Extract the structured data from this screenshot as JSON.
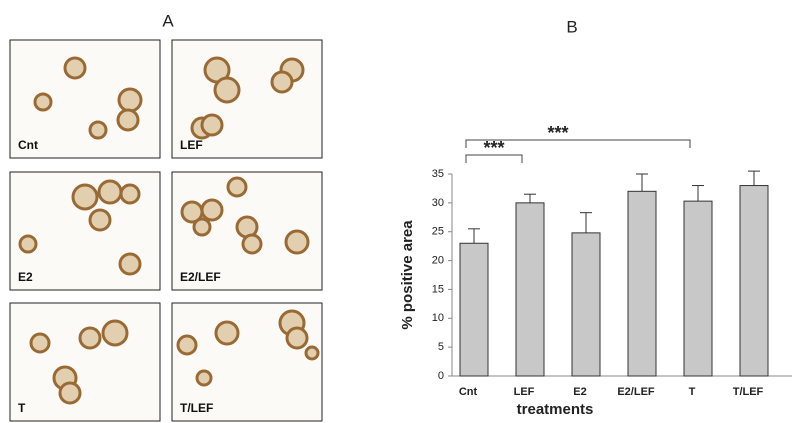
{
  "panel_a": {
    "label": "A",
    "images": [
      {
        "label": "Cnt"
      },
      {
        "label": "LEF"
      },
      {
        "label": "E2"
      },
      {
        "label": "E2/LEF"
      },
      {
        "label": "T"
      },
      {
        "label": "T/LEF"
      }
    ]
  },
  "chart_data": {
    "type": "bar",
    "label": "B",
    "x_label": "treatments",
    "y_label": "% positive area",
    "categories": [
      "Cnt",
      "LEF",
      "E2",
      "E2/LEF",
      "T",
      "T/LEF"
    ],
    "values": [
      23,
      30,
      24.8,
      32,
      30.3,
      33
    ],
    "errors": [
      2.5,
      1.5,
      3.5,
      3,
      2.7,
      2.5
    ],
    "color": "#c8c8c8",
    "ylim": [
      0,
      35
    ],
    "yticks": [
      0,
      5,
      10,
      15,
      20,
      25,
      30,
      35
    ],
    "grid": false,
    "annotations": [
      {
        "text": "***",
        "from": 0,
        "to": 1
      },
      {
        "text": "***",
        "from": 0,
        "to": 4
      }
    ]
  }
}
